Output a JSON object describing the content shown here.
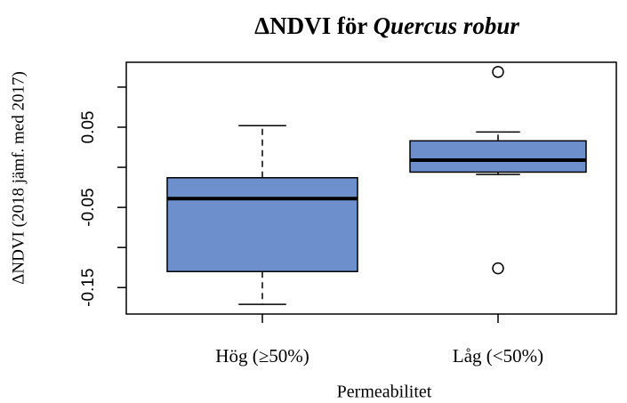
{
  "chart_data": {
    "type": "box",
    "title": "ΔNDVI för",
    "title_italic": "Quercus robur",
    "ylabel": "ΔNDVI (2018 jämf. med 2017)",
    "xlabel": "Permeabilitet",
    "categories": [
      "Hög (≥50%)",
      "Låg (<50%)"
    ],
    "boxes": [
      {
        "min": -0.171,
        "q1": -0.13,
        "median": -0.039,
        "q3": -0.013,
        "max": 0.052,
        "outliers": []
      },
      {
        "min": -0.009,
        "q1": -0.006,
        "median": 0.009,
        "q3": 0.033,
        "max": 0.044,
        "outliers": [
          0.119,
          -0.126
        ]
      }
    ],
    "color": "#6d8fcc",
    "ylim": [
      -0.183,
      0.131
    ],
    "yticks": [
      -0.15,
      -0.05,
      0.05
    ],
    "yticks_unlabeled": [
      -0.1,
      0,
      0.1
    ]
  }
}
